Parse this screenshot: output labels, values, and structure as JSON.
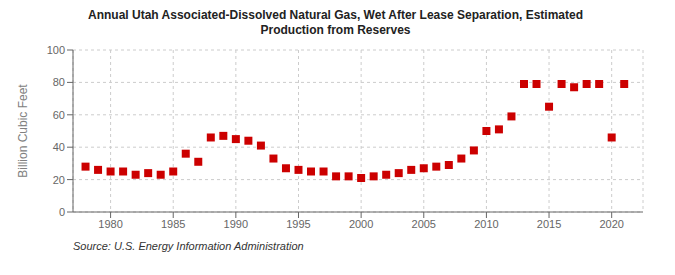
{
  "chart_data": {
    "type": "scatter",
    "title": "Annual Utah Associated-Dissolved Natural Gas, Wet After Lease Separation, Estimated\nProduction from Reserves",
    "ylabel": "Billion Cubic Feet",
    "source": "Source: U.S. Energy Information Administration",
    "x": [
      1978,
      1979,
      1980,
      1981,
      1982,
      1983,
      1984,
      1985,
      1986,
      1987,
      1988,
      1989,
      1990,
      1991,
      1992,
      1993,
      1994,
      1995,
      1996,
      1997,
      1998,
      1999,
      2000,
      2001,
      2002,
      2003,
      2004,
      2005,
      2006,
      2007,
      2008,
      2009,
      2010,
      2011,
      2012,
      2013,
      2014,
      2015,
      2016,
      2017,
      2018,
      2019,
      2020,
      2021
    ],
    "values": [
      28,
      26,
      25,
      25,
      23,
      24,
      23,
      25,
      36,
      31,
      46,
      47,
      45,
      44,
      41,
      33,
      27,
      26,
      25,
      25,
      22,
      22,
      21,
      22,
      23,
      24,
      26,
      27,
      28,
      29,
      33,
      38,
      50,
      51,
      59,
      79,
      79,
      65,
      79,
      77,
      79,
      79,
      46,
      79
    ],
    "color": "#cc0000",
    "marker": "square",
    "xlim": [
      1977,
      2022.5
    ],
    "ylim": [
      0,
      100
    ],
    "xticks": [
      1980,
      1985,
      1990,
      1995,
      2000,
      2005,
      2010,
      2015,
      2020
    ],
    "yticks": [
      0,
      20,
      40,
      60,
      80,
      100
    ],
    "grid": true
  }
}
